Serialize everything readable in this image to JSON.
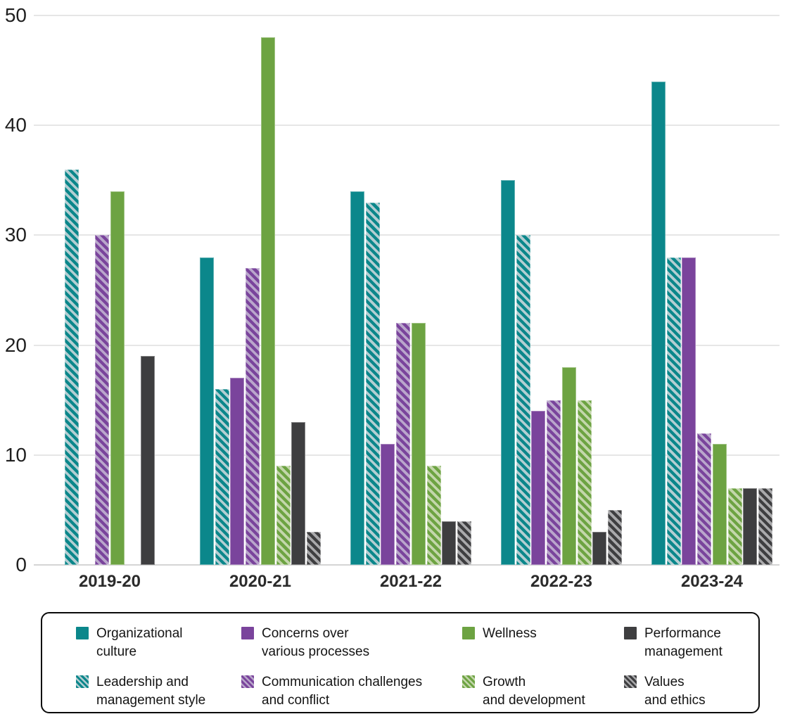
{
  "chart_data": {
    "type": "bar",
    "title": "",
    "xlabel": "",
    "ylabel": "",
    "ylim": [
      0,
      50
    ],
    "yticks": [
      0,
      10,
      20,
      30,
      40,
      50
    ],
    "grid": true,
    "legend_position": "bottom",
    "categories": [
      "2019-20",
      "2020-21",
      "2021-22",
      "2022-23",
      "2023-24"
    ],
    "series": [
      {
        "name": "Organizational culture",
        "color": "teal",
        "pattern": "solid",
        "values": [
          0,
          28,
          34,
          35,
          44
        ]
      },
      {
        "name": "Leadership and management style",
        "color": "teal",
        "pattern": "hatched",
        "values": [
          36,
          16,
          33,
          30,
          28
        ]
      },
      {
        "name": "Concerns over various processes",
        "color": "purple",
        "pattern": "solid",
        "values": [
          0,
          17,
          11,
          14,
          28
        ]
      },
      {
        "name": "Communication challenges and conflict",
        "color": "purple",
        "pattern": "hatched",
        "values": [
          30,
          27,
          22,
          15,
          12
        ]
      },
      {
        "name": "Wellness",
        "color": "green",
        "pattern": "solid",
        "values": [
          34,
          48,
          22,
          18,
          11
        ]
      },
      {
        "name": "Growth and development",
        "color": "green",
        "pattern": "hatched",
        "values": [
          0,
          9,
          9,
          15,
          7
        ]
      },
      {
        "name": "Performance management",
        "color": "gray",
        "pattern": "solid",
        "values": [
          19,
          13,
          4,
          3,
          7
        ]
      },
      {
        "name": "Values and ethics",
        "color": "gray",
        "pattern": "hatched",
        "values": [
          0,
          3,
          4,
          5,
          7
        ]
      }
    ]
  },
  "legend": {
    "items": [
      {
        "line1": "Organizational",
        "line2": "culture",
        "color": "teal",
        "pattern": "solid"
      },
      {
        "line1": "Concerns over",
        "line2": "various processes",
        "color": "purple",
        "pattern": "solid"
      },
      {
        "line1": "Wellness",
        "line2": "",
        "color": "green",
        "pattern": "solid"
      },
      {
        "line1": "Performance",
        "line2": "management",
        "color": "gray",
        "pattern": "solid"
      },
      {
        "line1": "Leadership and",
        "line2": "management style",
        "color": "teal",
        "pattern": "hatched"
      },
      {
        "line1": "Communication challenges",
        "line2": "and conflict",
        "color": "purple",
        "pattern": "hatched"
      },
      {
        "line1": "Growth",
        "line2": "and development",
        "color": "green",
        "pattern": "hatched"
      },
      {
        "line1": "Values",
        "line2": "and ethics",
        "color": "gray",
        "pattern": "hatched"
      }
    ]
  },
  "colors": {
    "teal": "#0b878b",
    "teal_hatch_light": "#b3ced2",
    "purple": "#7a449c",
    "purple_hatch_light": "#b9a6cb",
    "green": "#6da342",
    "green_hatch_light": "#c3d6ab",
    "gray": "#3e3e40",
    "gray_hatch_light": "#a9a9ab",
    "gridline": "#e6e6e6",
    "axis_line": "#d5d5d5",
    "tick_text": "#1f1f1f",
    "legend_border": "#0a0a0a"
  }
}
